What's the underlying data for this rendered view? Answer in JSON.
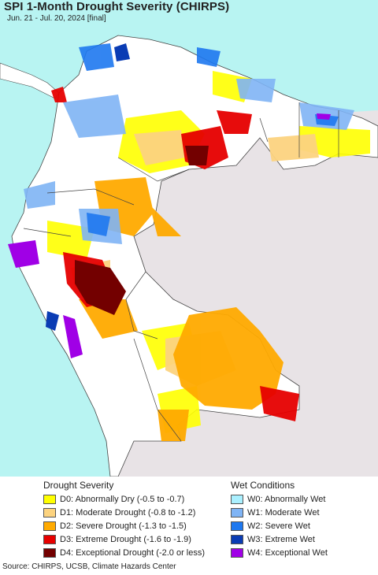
{
  "title": "SPI 1-Month Drought Severity (CHIRPS)",
  "subtitle": "Jun. 21 - Jul. 20, 2024 [final]",
  "colors": {
    "ocean": "#b8f4f2",
    "land_outside": "#e8e3e6",
    "normal": "#ffffff",
    "border": "#444444"
  },
  "legend": {
    "drought_heading": "Drought Severity",
    "wet_heading": "Wet Conditions",
    "drought": [
      {
        "label": "D0: Abnormally Dry (-0.5 to -0.7)",
        "color": "#ffff00"
      },
      {
        "label": "D1: Moderate Drought (-0.8 to -1.2)",
        "color": "#fcd37f"
      },
      {
        "label": "D2: Severe Drought (-1.3 to -1.5)",
        "color": "#ffaa00"
      },
      {
        "label": "D3: Extreme Drought (-1.6 to -1.9)",
        "color": "#e60000"
      },
      {
        "label": "D4: Exceptional Drought (-2.0 or less)",
        "color": "#730000"
      }
    ],
    "wet": [
      {
        "label": "W0: Abnormally Wet",
        "color": "#aaf0ff"
      },
      {
        "label": "W1: Moderate Wet",
        "color": "#7fb4f5"
      },
      {
        "label": "W2: Severe Wet",
        "color": "#1e78f0"
      },
      {
        "label": "W3: Extreme Wet",
        "color": "#0a3cb4"
      },
      {
        "label": "W4: Exceptional Wet",
        "color": "#a000e6"
      }
    ]
  },
  "source": "Source: CHIRPS, UCSB, Climate Hazards Center"
}
